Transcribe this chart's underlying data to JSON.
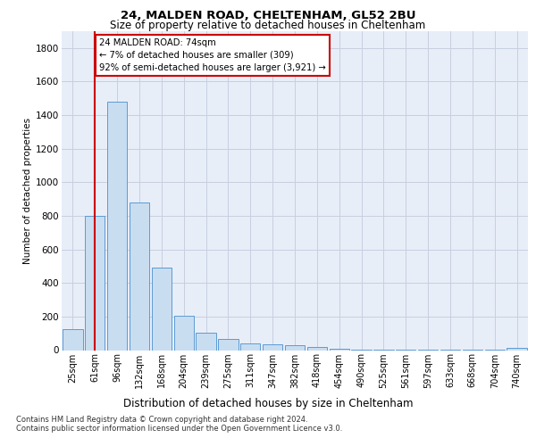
{
  "title1": "24, MALDEN ROAD, CHELTENHAM, GL52 2BU",
  "title2": "Size of property relative to detached houses in Cheltenham",
  "xlabel": "Distribution of detached houses by size in Cheltenham",
  "ylabel": "Number of detached properties",
  "categories": [
    "25sqm",
    "61sqm",
    "96sqm",
    "132sqm",
    "168sqm",
    "204sqm",
    "239sqm",
    "275sqm",
    "311sqm",
    "347sqm",
    "382sqm",
    "418sqm",
    "454sqm",
    "490sqm",
    "525sqm",
    "561sqm",
    "597sqm",
    "633sqm",
    "668sqm",
    "704sqm",
    "740sqm"
  ],
  "values": [
    125,
    800,
    1480,
    880,
    490,
    205,
    105,
    65,
    40,
    35,
    30,
    20,
    10,
    5,
    3,
    2,
    2,
    2,
    2,
    2,
    15
  ],
  "bar_color": "#c9ddf0",
  "bar_edge_color": "#5b9bd5",
  "red_line_x": 1.0,
  "annotation_line1": "24 MALDEN ROAD: 74sqm",
  "annotation_line2": "← 7% of detached houses are smaller (309)",
  "annotation_line3": "92% of semi-detached houses are larger (3,921) →",
  "footer1": "Contains HM Land Registry data © Crown copyright and database right 2024.",
  "footer2": "Contains public sector information licensed under the Open Government Licence v3.0.",
  "ylim": [
    0,
    1900
  ],
  "yticks": [
    0,
    200,
    400,
    600,
    800,
    1000,
    1200,
    1400,
    1600,
    1800
  ],
  "grid_color": "#c8cfe0",
  "bg_color": "#e8eef8"
}
